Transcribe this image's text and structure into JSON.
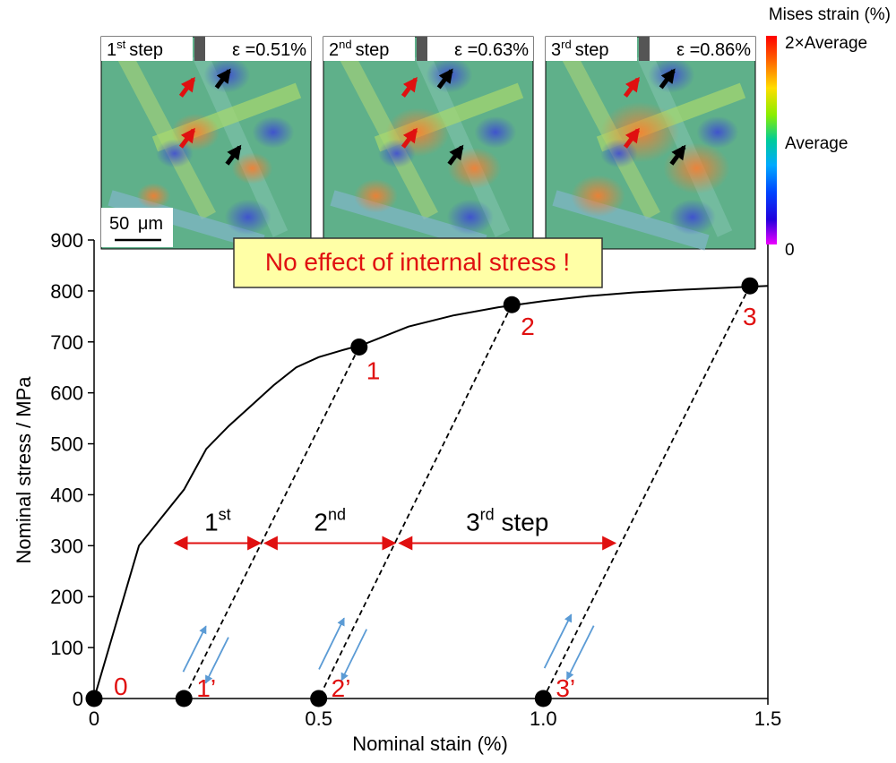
{
  "chart_data": {
    "type": "line",
    "xlabel": "Nominal stain (%)",
    "ylabel": "Nominal stress / MPa",
    "xlim": [
      0,
      1.5
    ],
    "ylim": [
      0,
      900
    ],
    "xticks": [
      "0",
      "0.5",
      "1.0",
      "1.5"
    ],
    "yticks": [
      "0",
      "100",
      "200",
      "300",
      "400",
      "500",
      "600",
      "700",
      "800",
      "900"
    ],
    "curve": {
      "x": [
        0,
        0.1,
        0.2,
        0.25,
        0.3,
        0.35,
        0.4,
        0.45,
        0.5,
        0.55,
        0.6,
        0.7,
        0.8,
        0.9,
        1.0,
        1.1,
        1.2,
        1.3,
        1.4,
        1.5
      ],
      "y": [
        0,
        300,
        410,
        490,
        535,
        575,
        615,
        650,
        670,
        683,
        695,
        730,
        752,
        768,
        780,
        790,
        797,
        802,
        806,
        810
      ]
    },
    "unloading_lines": [
      {
        "from": [
          0.59,
          690
        ],
        "to": [
          0.2,
          0
        ]
      },
      {
        "from": [
          0.93,
          773
        ],
        "to": [
          0.5,
          0
        ]
      },
      {
        "from": [
          1.46,
          810
        ],
        "to": [
          1.0,
          0
        ]
      }
    ],
    "points": [
      {
        "label": "0",
        "x": 0.0,
        "y": 0
      },
      {
        "label": "1",
        "x": 0.59,
        "y": 690
      },
      {
        "label": "2",
        "x": 0.93,
        "y": 773
      },
      {
        "label": "3",
        "x": 1.46,
        "y": 810
      },
      {
        "label": "1’",
        "x": 0.2,
        "y": 0
      },
      {
        "label": "2’",
        "x": 0.5,
        "y": 0
      },
      {
        "label": "3’",
        "x": 1.0,
        "y": 0
      }
    ],
    "step_spans": [
      {
        "label": "1",
        "sup": "st",
        "suffix": "",
        "x0": 0.18,
        "x1": 0.37,
        "y": 305
      },
      {
        "label": "2",
        "sup": "nd",
        "suffix": "",
        "x0": 0.38,
        "x1": 0.67,
        "y": 305
      },
      {
        "label": "3",
        "sup": "rd",
        "suffix": " step",
        "x0": 0.68,
        "x1": 1.16,
        "y": 305
      }
    ],
    "annotation": "No effect of internal stress !"
  },
  "panels": [
    {
      "step_num": "1",
      "step_sup": "st",
      "step_word": "step",
      "strain": "ε =0.51%"
    },
    {
      "step_num": "2",
      "step_sup": "nd",
      "step_word": "step",
      "strain": "ε =0.63%"
    },
    {
      "step_num": "3",
      "step_sup": "rd",
      "step_word": "step",
      "strain": "ε =0.86%"
    }
  ],
  "scalebar": {
    "value": "50",
    "unit": "μm"
  },
  "colorbar": {
    "title": "Mises strain (%)",
    "max_label": "2×Average",
    "mid_label": "Average",
    "min_label": "0"
  }
}
